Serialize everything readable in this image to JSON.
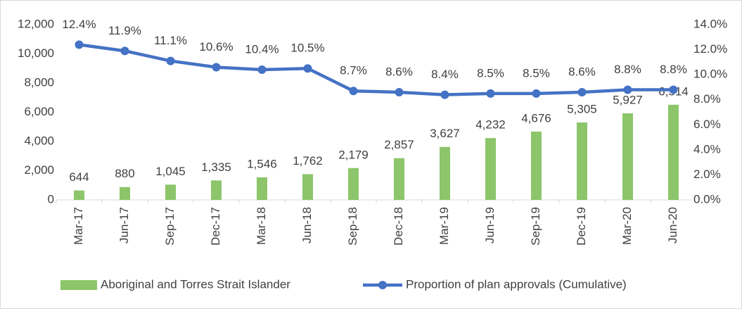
{
  "chart_data": {
    "type": "bar",
    "categories": [
      "Mar-17",
      "Jun-17",
      "Sep-17",
      "Dec-17",
      "Mar-18",
      "Jun-18",
      "Sep-18",
      "Dec-18",
      "Mar-19",
      "Jun-19",
      "Sep-19",
      "Dec-19",
      "Mar-20",
      "Jun-20"
    ],
    "series": [
      {
        "name": "Aboriginal and Torres Strait Islander",
        "type": "bar",
        "color": "#8cc56a",
        "values": [
          644,
          880,
          1045,
          1335,
          1546,
          1762,
          2179,
          2857,
          3627,
          4232,
          4676,
          5305,
          5927,
          6514
        ],
        "value_labels": [
          "644",
          "880",
          "1,045",
          "1,335",
          "1,546",
          "1,762",
          "2,179",
          "2,857",
          "3,627",
          "4,232",
          "4,676",
          "5,305",
          "5,927",
          "6,514"
        ]
      },
      {
        "name": "Proportion of plan approvals (Cumulative)",
        "type": "line",
        "axis": "y2",
        "color": "#4472c4",
        "values": [
          12.4,
          11.9,
          11.1,
          10.6,
          10.4,
          10.5,
          8.7,
          8.6,
          8.4,
          8.5,
          8.5,
          8.6,
          8.8,
          8.8
        ],
        "value_labels": [
          "12.4%",
          "11.9%",
          "11.1%",
          "10.6%",
          "10.4%",
          "10.5%",
          "8.7%",
          "8.6%",
          "8.4%",
          "8.5%",
          "8.5%",
          "8.6%",
          "8.8%",
          "8.8%"
        ]
      }
    ],
    "ylim": [
      0,
      12000
    ],
    "yticks": [
      0,
      {
        "value": 2000,
        "label": "2,000"
      },
      {
        "value": 4000,
        "label": "4,000"
      },
      {
        "value": 6000,
        "label": "6,000"
      },
      {
        "value": 8000,
        "label": "8,000"
      },
      {
        "value": 10000,
        "label": "10,000"
      },
      {
        "value": 12000,
        "label": "12,000"
      }
    ],
    "y2lim": [
      0,
      14
    ],
    "y2ticks": [
      {
        "value": 0,
        "label": "0.0%"
      },
      {
        "value": 2,
        "label": "2.0%"
      },
      {
        "value": 4,
        "label": "4.0%"
      },
      {
        "value": 6,
        "label": "6.0%"
      },
      {
        "value": 8,
        "label": "8.0%"
      },
      {
        "value": 10,
        "label": "10.0%"
      },
      {
        "value": 12,
        "label": "12.0%"
      },
      {
        "value": 14,
        "label": "14.0%"
      }
    ],
    "legend": "bottom"
  }
}
